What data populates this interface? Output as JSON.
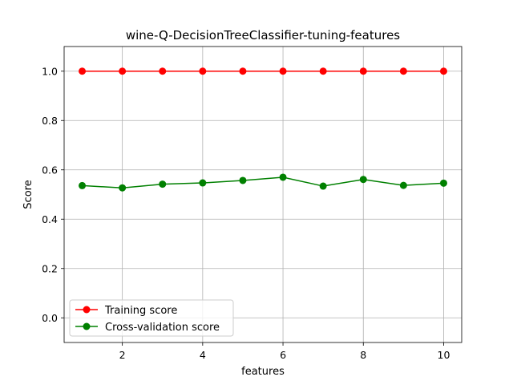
{
  "chart_data": {
    "type": "line",
    "title": "wine-Q-DecisionTreeClassifier-tuning-features",
    "xlabel": "features",
    "ylabel": "Score",
    "x": [
      1,
      2,
      3,
      4,
      5,
      6,
      7,
      8,
      9,
      10
    ],
    "xlim": [
      0.55,
      10.45
    ],
    "ylim": [
      -0.1,
      1.1
    ],
    "xticks": [
      2,
      4,
      6,
      8,
      10
    ],
    "yticks": [
      0.0,
      0.2,
      0.4,
      0.6,
      0.8,
      1.0
    ],
    "xtick_labels": [
      "2",
      "4",
      "6",
      "8",
      "10"
    ],
    "ytick_labels": [
      "0.0",
      "0.2",
      "0.4",
      "0.6",
      "0.8",
      "1.0"
    ],
    "grid": true,
    "legend_position": "bottom-left",
    "series": [
      {
        "name": "Training score",
        "color": "#ff0000",
        "values": [
          1.0,
          1.0,
          1.0,
          1.0,
          1.0,
          1.0,
          1.0,
          1.0,
          1.0,
          1.0
        ]
      },
      {
        "name": "Cross-validation score",
        "color": "#008000",
        "values": [
          0.536,
          0.527,
          0.542,
          0.547,
          0.557,
          0.57,
          0.534,
          0.561,
          0.537,
          0.546
        ]
      }
    ]
  }
}
